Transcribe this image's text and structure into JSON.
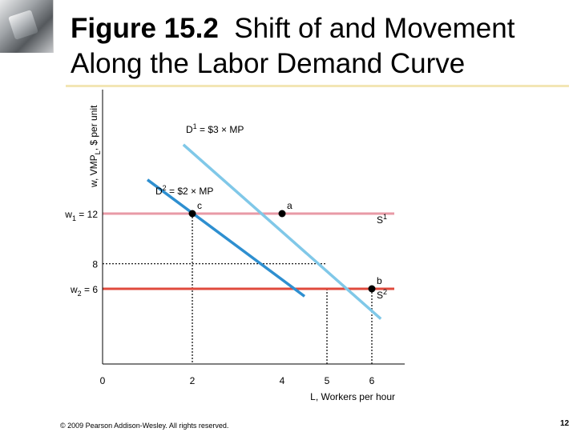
{
  "slide": {
    "figure_label": "Figure 15.2",
    "title_text": "Shift of and Movement Along the Labor Demand Curve",
    "copyright": "© 2009 Pearson Addison-Wesley. All rights reserved.",
    "page_number": "12"
  },
  "colors": {
    "d1_line": "#80c8e8",
    "d2_line": "#2e8fd0",
    "s1_line": "#e89aa6",
    "s2_line": "#e04a3c",
    "axis": "#000000",
    "dotted": "#000000",
    "title_rule": "#f2e6b5"
  },
  "chart_data": {
    "type": "line",
    "ylabel_parts": {
      "main": "w, VMP",
      "sub": "L",
      "rest": ", $ per unit"
    },
    "xlabel": "L, Workers per hour",
    "x_ticks": [
      {
        "value": 0,
        "label": "0"
      },
      {
        "value": 2,
        "label": "2"
      },
      {
        "value": 4,
        "label": "4"
      },
      {
        "value": 5,
        "label": "5"
      },
      {
        "value": 6,
        "label": "6"
      }
    ],
    "y_ticks": [
      {
        "value": 12,
        "parts": {
          "main": "w",
          "sub": "1",
          "rest": " = 12"
        }
      },
      {
        "value": 8,
        "parts": {
          "main": "8",
          "sub": "",
          "rest": ""
        }
      },
      {
        "value": 6,
        "parts": {
          "main": "w",
          "sub": "2",
          "rest": " = 6"
        }
      }
    ],
    "xlim": [
      0,
      6.5
    ],
    "ylim": [
      0,
      16
    ],
    "demand_curves": [
      {
        "name": "D1",
        "label_parts": {
          "main": "D",
          "sup": "1",
          "rest": " = $3 × MP",
          "sub": "L"
        },
        "color_key": "d1_line",
        "points": [
          [
            1.8,
            17.5
          ],
          [
            6.2,
            3.6
          ]
        ]
      },
      {
        "name": "D2",
        "label_parts": {
          "main": "D",
          "sup": "2",
          "rest": " = $2 × MP",
          "sub": "L"
        },
        "color_key": "d2_line",
        "points": [
          [
            1.0,
            14.7
          ],
          [
            4.5,
            5.4
          ]
        ]
      }
    ],
    "supply_curves": [
      {
        "name": "S1",
        "label_parts": {
          "main": "S",
          "sup": "1"
        },
        "y": 12,
        "color_key": "s1_line",
        "x_range": [
          0,
          6.5
        ]
      },
      {
        "name": "S2",
        "label_parts": {
          "main": "S",
          "sup": "2"
        },
        "y": 6,
        "color_key": "s2_line",
        "x_range": [
          0,
          6.5
        ]
      }
    ],
    "points": [
      {
        "label": "a",
        "x": 4,
        "y": 12
      },
      {
        "label": "b",
        "x": 6,
        "y": 6
      },
      {
        "label": "c",
        "x": 2,
        "y": 12
      }
    ],
    "dotted_guides": [
      {
        "type": "h",
        "y": 8,
        "x_from": 0,
        "x_to": 5
      },
      {
        "type": "v",
        "x": 2,
        "y_from": 12,
        "y_to": 0
      },
      {
        "type": "v",
        "x": 5,
        "y_from": 6,
        "y_to": 0
      },
      {
        "type": "v",
        "x": 6,
        "y_from": 6,
        "y_to": 0
      }
    ]
  }
}
